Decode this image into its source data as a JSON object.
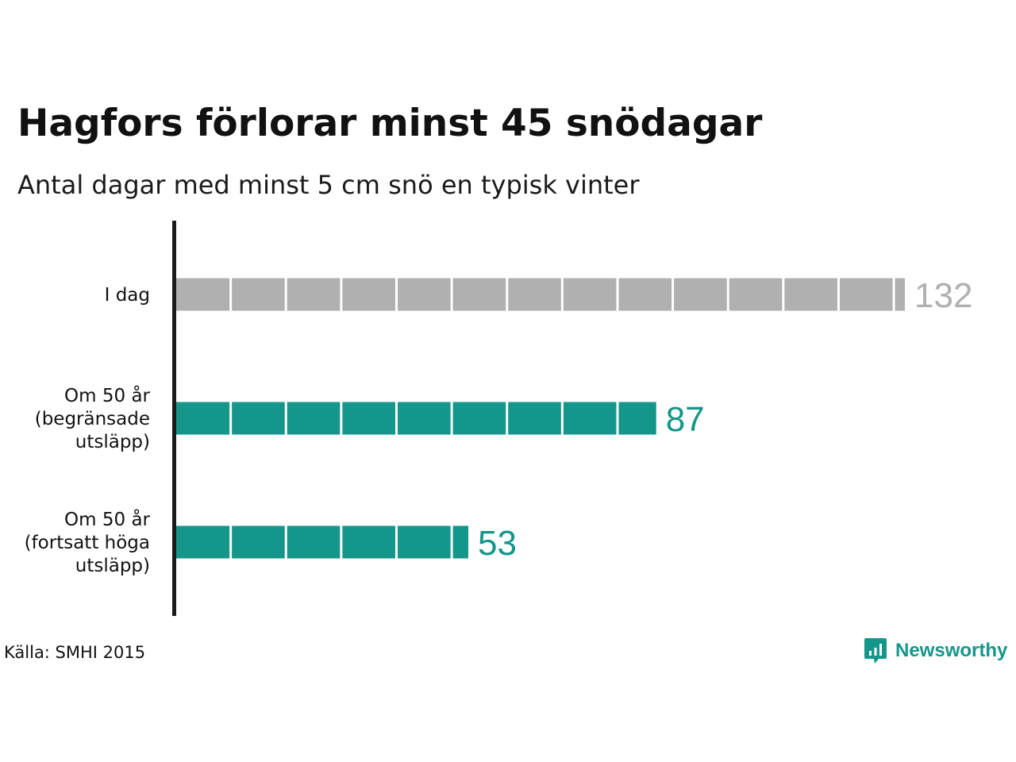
{
  "title": "Hagfors förlorar minst 45 snödagar",
  "subtitle": "Antal dagar med minst 5 cm snö en typisk vinter",
  "source": "Källa: SMHI 2015",
  "brand": {
    "name": "Newsworthy",
    "icon": "newsworthy-logo-icon"
  },
  "colors": {
    "today": "#b0b0b0",
    "future": "#14968a",
    "axis": "#1a1a1a",
    "segment_gap": "#ffffff"
  },
  "chart_data": {
    "type": "bar",
    "orientation": "horizontal",
    "categories": [
      [
        "I dag"
      ],
      [
        "Om 50 år",
        "(begränsade",
        "utsläpp)"
      ],
      [
        "Om 50 år",
        "(fortsatt höga",
        "utsläpp)"
      ]
    ],
    "values": [
      132,
      87,
      53
    ],
    "value_labels": [
      "132",
      "87",
      "53"
    ],
    "segment_size": 10,
    "xlim": [
      0,
      132
    ],
    "grid": false,
    "legend": "none"
  }
}
